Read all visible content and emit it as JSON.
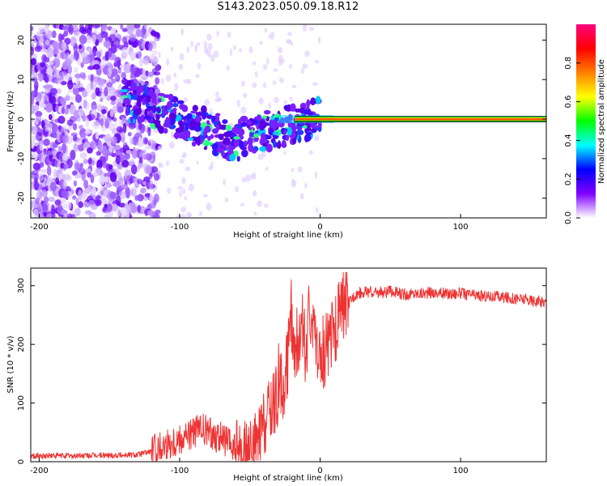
{
  "title": "S143.2023.050.09.18.R12",
  "chart_data": [
    {
      "type": "heatmap",
      "xlabel": "Height of straight line (km)",
      "ylabel": "Frequency (Hz)",
      "xlim": [
        -206,
        161
      ],
      "ylim": [
        -25,
        24
      ],
      "xticks": [
        -200,
        -100,
        0,
        100
      ],
      "yticks": [
        -20,
        -10,
        0,
        10,
        20
      ],
      "grid": false,
      "colormap": [
        "#ffffff",
        "#8000ff",
        "#0000ff",
        "#00ffff",
        "#00ff00",
        "#ffff00",
        "#ff8000",
        "#ff0000",
        "#ff0080"
      ],
      "tone_frequency_hz": 0,
      "colorbar": {
        "label": "Normalized spectral amplitude",
        "range": [
          0,
          1
        ],
        "ticks": [
          0.0,
          0.2,
          0.4,
          0.6,
          0.8
        ]
      }
    },
    {
      "type": "line",
      "xlabel": "Height of straight line (km)",
      "ylabel": "SNR (10 * v/v)",
      "xlim": [
        -206,
        161
      ],
      "ylim": [
        0,
        330
      ],
      "xticks": [
        -200,
        -100,
        0,
        100
      ],
      "yticks": [
        0,
        100,
        200,
        300
      ],
      "grid": false,
      "series": [
        {
          "color": "#ee3333",
          "x": [
            -206,
            -190,
            -170,
            -150,
            -130,
            -120,
            -110,
            -100,
            -95,
            -90,
            -85,
            -80,
            -75,
            -70,
            -65,
            -60,
            -55,
            -50,
            -45,
            -40,
            -35,
            -30,
            -25,
            -22,
            -20,
            -18,
            -15,
            -12,
            -10,
            -8,
            -5,
            -2,
            0,
            5,
            10,
            15,
            20,
            25,
            30,
            40,
            50,
            60,
            70,
            80,
            90,
            100,
            110,
            120,
            130,
            140,
            150,
            161
          ],
          "y": [
            10,
            10,
            10,
            11,
            12,
            18,
            30,
            40,
            45,
            50,
            55,
            50,
            45,
            40,
            30,
            20,
            15,
            12,
            30,
            60,
            90,
            110,
            130,
            200,
            250,
            150,
            200,
            230,
            170,
            240,
            250,
            180,
            160,
            200,
            220,
            260,
            270,
            285,
            290,
            288,
            290,
            285,
            287,
            288,
            286,
            287,
            284,
            282,
            280,
            278,
            275,
            272
          ]
        }
      ]
    }
  ]
}
